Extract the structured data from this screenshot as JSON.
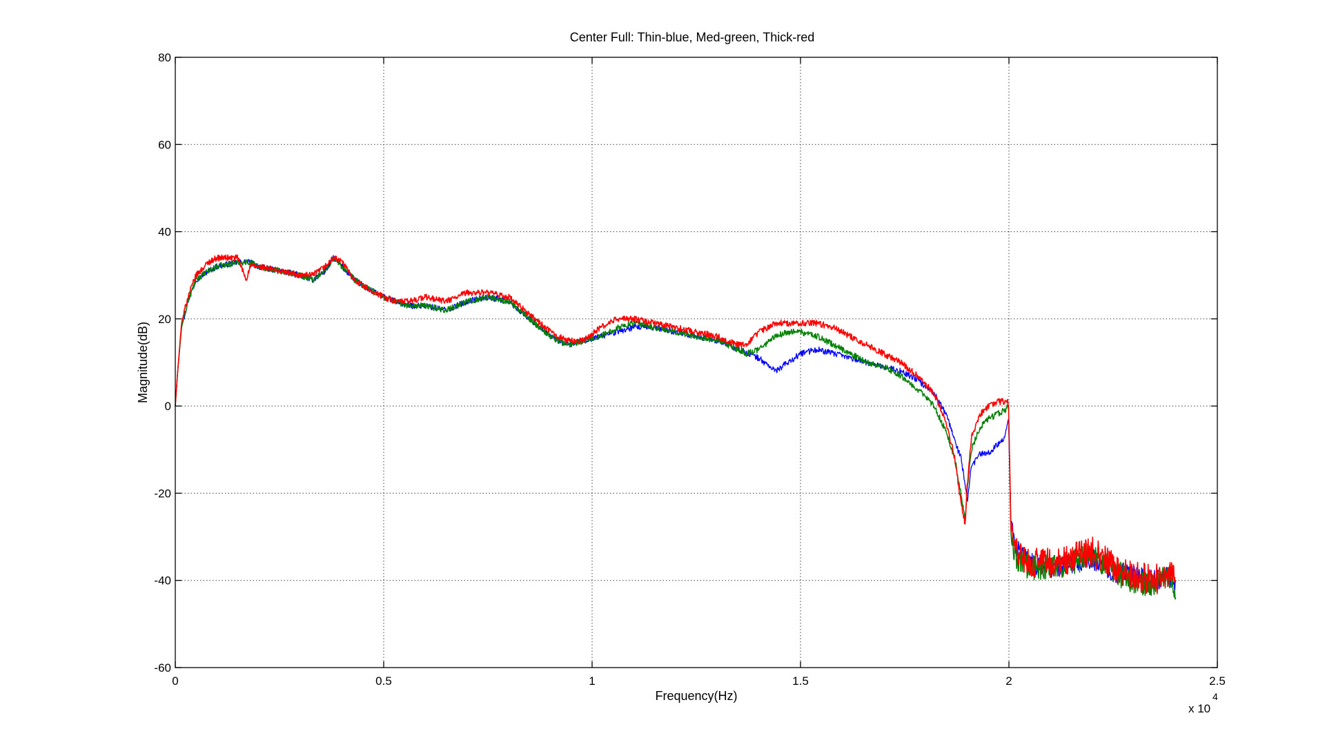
{
  "chart_data": {
    "type": "line",
    "title": "Center Full: Thin-blue, Med-green, Thick-red",
    "xlabel": "Frequency(Hz)",
    "ylabel": "Magnitude(dB)",
    "x_exponent_label": "x 10",
    "x_exponent": "4",
    "xlim": [
      0,
      25000
    ],
    "ylim": [
      -60,
      80
    ],
    "x_ticks": [
      0,
      5000,
      10000,
      15000,
      20000,
      25000
    ],
    "x_tick_labels": [
      "0",
      "0.5",
      "1",
      "1.5",
      "2",
      "2.5"
    ],
    "y_ticks": [
      -60,
      -40,
      -20,
      0,
      20,
      40,
      60,
      80
    ],
    "y_tick_labels": [
      "-60",
      "-40",
      "-20",
      "0",
      "20",
      "40",
      "60",
      "80"
    ],
    "grid": true,
    "series": [
      {
        "color": "#0000ff",
        "stroke_width": 1.3,
        "noise_above_20k": 2.5,
        "x": [
          0,
          50,
          150,
          300,
          500,
          800,
          1000,
          1500,
          1800,
          2000,
          2500,
          3000,
          3300,
          3600,
          3800,
          4000,
          4300,
          4600,
          5000,
          5300,
          5600,
          6000,
          6500,
          7000,
          7500,
          8000,
          8500,
          9000,
          9400,
          9800,
          10200,
          10600,
          11000,
          11500,
          12000,
          12500,
          13000,
          13500,
          14000,
          14400,
          14700,
          15000,
          15400,
          15800,
          16200,
          16600,
          17000,
          17400,
          17800,
          18200,
          18500,
          18700,
          18850,
          18950,
          19000,
          19100,
          19300,
          19500,
          19700,
          19900,
          19990,
          20050,
          20200,
          20500,
          21000,
          21500,
          22000,
          22500,
          23000,
          23500,
          23800,
          24000
        ],
        "y": [
          0,
          7,
          18,
          24,
          29,
          31,
          32,
          33,
          33,
          32,
          31,
          30,
          29,
          31,
          34,
          32,
          29,
          27,
          25,
          24,
          23,
          23,
          22,
          24,
          25,
          24,
          20,
          16,
          14,
          15,
          16,
          17,
          18,
          18,
          17,
          16,
          15,
          13,
          11,
          8,
          10,
          12,
          13,
          12,
          11,
          10,
          9,
          8,
          6,
          3,
          -2,
          -8,
          -12,
          -18,
          -22,
          -14,
          -11,
          -11,
          -9,
          -7,
          -3,
          -28,
          -33,
          -36,
          -37,
          -36,
          -35,
          -38,
          -39,
          -40,
          -39,
          -42
        ]
      },
      {
        "color": "#008000",
        "stroke_width": 1.5,
        "noise_above_20k": 3,
        "x": [
          0,
          50,
          150,
          300,
          500,
          800,
          1000,
          1500,
          1800,
          2000,
          2500,
          3000,
          3300,
          3600,
          3800,
          4000,
          4300,
          4600,
          5000,
          5300,
          5600,
          6000,
          6500,
          7000,
          7500,
          8000,
          8500,
          9000,
          9400,
          9800,
          10200,
          10600,
          11000,
          11500,
          12000,
          12500,
          13000,
          13500,
          13700,
          14000,
          14400,
          14700,
          15000,
          15400,
          15800,
          16200,
          16600,
          17000,
          17400,
          17800,
          18200,
          18500,
          18700,
          18850,
          18950,
          19000,
          19100,
          19300,
          19500,
          19700,
          19900,
          19990,
          20050,
          20200,
          20500,
          21000,
          21500,
          22000,
          22500,
          23000,
          23500,
          23800,
          24000
        ],
        "y": [
          0,
          7,
          18,
          24,
          29,
          31,
          32,
          33,
          33,
          32,
          31,
          30,
          29,
          31,
          34,
          32,
          29,
          27,
          25,
          24,
          23,
          23,
          22,
          24,
          25,
          24,
          20,
          16,
          14,
          15,
          16,
          18,
          19,
          18,
          17,
          16,
          15,
          13,
          12,
          13,
          16,
          17,
          17,
          16,
          14,
          12,
          10,
          9,
          7,
          4,
          0,
          -6,
          -12,
          -20,
          -26,
          -19,
          -10,
          -5,
          -3,
          -2,
          -1,
          0,
          -30,
          -35,
          -37,
          -37,
          -36,
          -34,
          -38,
          -40,
          -41,
          -39,
          -42
        ]
      },
      {
        "color": "#ff0000",
        "stroke_width": 1.6,
        "noise_above_20k": 3.5,
        "x": [
          0,
          50,
          150,
          300,
          500,
          800,
          1000,
          1500,
          1700,
          1800,
          2000,
          2500,
          3000,
          3300,
          3600,
          3800,
          4000,
          4300,
          4600,
          5000,
          5300,
          5600,
          6000,
          6500,
          7000,
          7500,
          8000,
          8500,
          9000,
          9400,
          9800,
          10200,
          10600,
          11000,
          11500,
          12000,
          12500,
          13000,
          13500,
          13700,
          14000,
          14400,
          14700,
          15000,
          15400,
          15800,
          16200,
          16600,
          17000,
          17400,
          17800,
          18200,
          18500,
          18700,
          18850,
          18950,
          19000,
          19100,
          19300,
          19500,
          19700,
          19900,
          19990,
          20050,
          20200,
          20500,
          21000,
          21500,
          22000,
          22500,
          23000,
          23500,
          23800,
          24000
        ],
        "y": [
          0,
          7,
          19,
          25,
          30,
          33,
          34,
          34,
          29,
          32,
          32,
          31,
          30,
          30,
          32,
          34,
          33,
          29,
          27,
          25,
          24,
          24,
          25,
          24,
          26,
          26,
          25,
          21,
          17,
          15,
          15,
          18,
          20,
          20,
          19,
          18,
          17,
          16,
          14,
          14,
          17,
          19,
          19,
          19,
          19,
          18,
          16,
          14,
          12,
          10,
          7,
          3,
          -4,
          -12,
          -22,
          -27,
          -18,
          -7,
          -2,
          0,
          1,
          1,
          1,
          -29,
          -34,
          -36,
          -36,
          -35,
          -33,
          -37,
          -39,
          -40,
          -38,
          -40
        ]
      }
    ]
  }
}
